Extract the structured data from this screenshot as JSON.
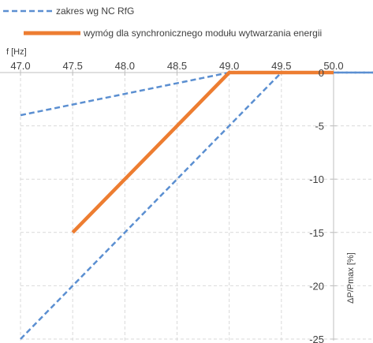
{
  "chart_data": {
    "type": "line",
    "xlabel": "f [Hz]",
    "ylabel": "ΔP/Pmax [%]",
    "xlim": [
      47.0,
      50.4
    ],
    "ylim": [
      -25,
      0
    ],
    "x_ticks": [
      "47.0",
      "47.5",
      "48.0",
      "48.5",
      "49.0",
      "49.5",
      "50.0"
    ],
    "y_ticks": [
      "0",
      "-5",
      "-10",
      "-15",
      "-20",
      "-25"
    ],
    "x_tick_values": [
      47.0,
      47.5,
      48.0,
      48.5,
      49.0,
      49.5,
      50.0
    ],
    "y_tick_values": [
      0,
      -5,
      -10,
      -15,
      -20,
      -25
    ],
    "grid": true,
    "legend_position": "top-left",
    "series": [
      {
        "name": "zakres wg NC RfG",
        "color": "#5b8fd1",
        "style": "dashed",
        "x": [
          47.0,
          49.0,
          50.4
        ],
        "y": [
          -4,
          0,
          0
        ]
      },
      {
        "name": "zakres wg NC RfG",
        "color": "#5b8fd1",
        "style": "dashed",
        "x": [
          47.0,
          49.5,
          50.4
        ],
        "y": [
          -25,
          0,
          0
        ]
      },
      {
        "name": "wymóg dla synchronicznego modułu wytwarzania energii",
        "color": "#ed7d31",
        "style": "solid",
        "x": [
          47.5,
          49.0,
          50.0
        ],
        "y": [
          -15,
          0,
          0
        ]
      }
    ]
  }
}
